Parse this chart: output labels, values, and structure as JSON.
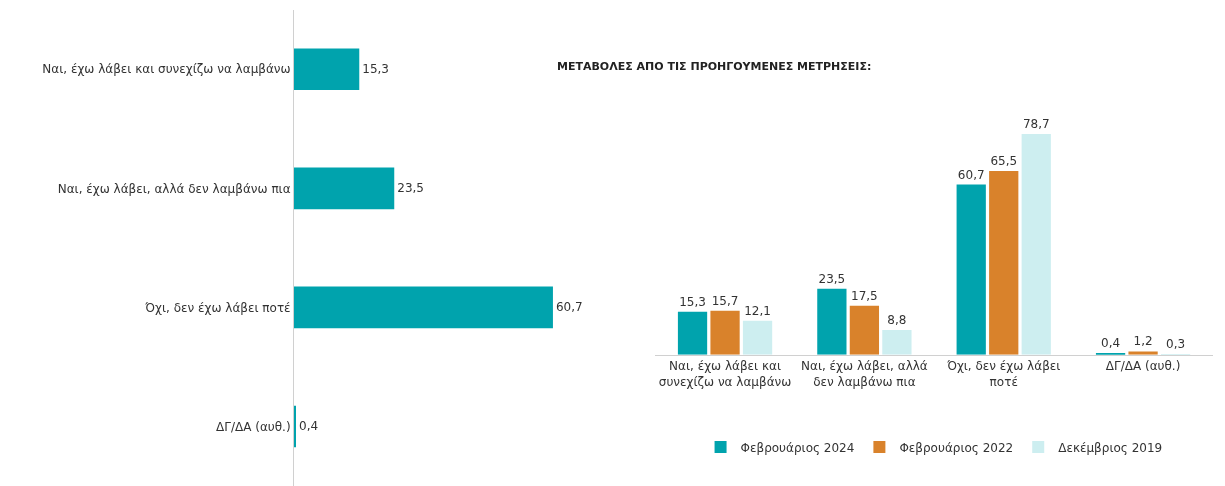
{
  "chart_data": [
    {
      "type": "bar",
      "orientation": "horizontal",
      "categories": [
        "Ναι, έχω λάβει και συνεχίζω να λαμβάνω",
        "Ναι, έχω λάβει, αλλά δεν λαμβάνω πια",
        "Όχι, δεν έχω λάβει ποτέ",
        "ΔΓ/ΔΑ (αυθ.)"
      ],
      "series": [
        {
          "color": "#00a3ad",
          "values": [
            15.3,
            23.5,
            60.7,
            0.4
          ],
          "value_labels": [
            "15,3",
            "23,5",
            "60,7",
            "0,4"
          ]
        }
      ]
    },
    {
      "type": "bar",
      "title": "ΜΕΤΑΒΟΛΕΣ ΑΠΟ ΤΙΣ ΠΡΟΗΓΟΥΜΕΝΕΣ ΜΕΤΡΗΣΕΙΣ:",
      "categories": [
        "Ναι, έχω λάβει και\nσυνεχίζω να λαμβάνω",
        "Ναι, έχω λάβει, αλλά\nδεν λαμβάνω πια",
        "Όχι, δεν έχω λάβει\nποτέ",
        "ΔΓ/ΔΑ (αυθ.)"
      ],
      "series": [
        {
          "name": "Φεβρουάριος 2024",
          "color": "#00a3ad",
          "values": [
            15.3,
            23.5,
            60.7,
            0.4
          ],
          "value_labels": [
            "15,3",
            "23,5",
            "60,7",
            "0,4"
          ]
        },
        {
          "name": "Φεβρουάριος 2022",
          "color": "#d9822b",
          "values": [
            15.7,
            17.5,
            65.5,
            1.2
          ],
          "value_labels": [
            "15,7",
            "17,5",
            "65,5",
            "1,2"
          ]
        },
        {
          "name": "Δεκέμβριος 2019",
          "color": "#cdeef0",
          "values": [
            12.1,
            8.8,
            78.7,
            0.3
          ],
          "value_labels": [
            "12,1",
            "8,8",
            "78,7",
            "0,3"
          ]
        }
      ],
      "legend": "bottom"
    }
  ]
}
